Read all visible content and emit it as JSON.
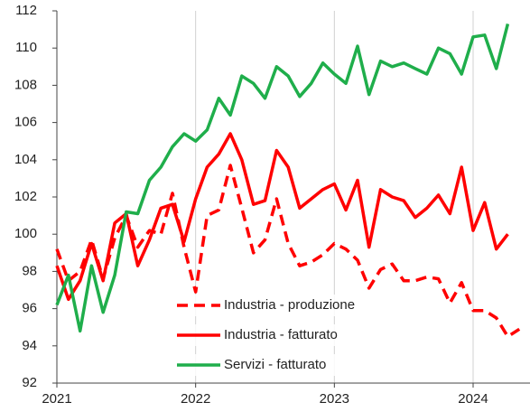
{
  "chart_data": {
    "type": "line",
    "x": [
      2021,
      2021.083,
      2021.167,
      2021.25,
      2021.333,
      2021.417,
      2021.5,
      2021.583,
      2021.667,
      2021.75,
      2021.833,
      2021.917,
      2022,
      2022.083,
      2022.167,
      2022.25,
      2022.333,
      2022.417,
      2022.5,
      2022.583,
      2022.667,
      2022.75,
      2022.833,
      2022.917,
      2023,
      2023.083,
      2023.167,
      2023.25,
      2023.333,
      2023.417,
      2023.5,
      2023.583,
      2023.667,
      2023.75,
      2023.833,
      2023.917,
      2024,
      2024.083,
      2024.167,
      2024.25,
      2024.333
    ],
    "series": [
      {
        "name": "Industria - produzione",
        "color": "#ff0000",
        "dashed": true,
        "values": [
          99.2,
          97.5,
          98.0,
          99.7,
          97.6,
          99.8,
          101.0,
          99.3,
          100.2,
          100.0,
          102.2,
          99.3,
          96.9,
          101.0,
          101.3,
          103.7,
          101.4,
          99.0,
          99.7,
          101.9,
          99.5,
          98.3,
          98.5,
          98.9,
          99.5,
          99.2,
          98.6,
          97.1,
          98.1,
          98.4,
          97.5,
          97.5,
          97.7,
          97.6,
          96.3,
          97.4,
          95.9,
          95.9,
          95.5,
          94.5,
          94.9
        ]
      },
      {
        "name": "Industria - fatturato",
        "color": "#ff0000",
        "dashed": false,
        "values": [
          98.3,
          96.5,
          97.5,
          99.5,
          97.5,
          100.6,
          101.1,
          98.3,
          99.7,
          101.4,
          101.6,
          99.6,
          101.9,
          103.6,
          104.3,
          105.4,
          104.0,
          101.6,
          101.8,
          104.5,
          103.6,
          101.4,
          101.9,
          102.4,
          102.7,
          101.3,
          102.9,
          99.3,
          102.4,
          102.0,
          101.8,
          100.9,
          101.4,
          102.1,
          101.1,
          103.6,
          100.2,
          101.7,
          99.2,
          100.0,
          null
        ]
      },
      {
        "name": "Servizi - fatturato",
        "color": "#1fae4b",
        "dashed": false,
        "values": [
          96.2,
          97.8,
          94.8,
          98.3,
          95.8,
          97.8,
          101.2,
          101.1,
          102.9,
          103.6,
          104.7,
          105.4,
          105.0,
          105.6,
          107.3,
          106.4,
          108.5,
          108.1,
          107.3,
          109.0,
          108.5,
          107.4,
          108.1,
          109.2,
          108.6,
          108.1,
          110.1,
          107.5,
          109.3,
          109.0,
          109.2,
          108.9,
          108.6,
          110.0,
          109.7,
          108.6,
          110.6,
          110.7,
          108.9,
          111.3,
          null
        ]
      }
    ],
    "xlim": [
      2021,
      2024.41
    ],
    "xticks": [
      2021,
      2022,
      2023,
      2024
    ],
    "ylim": [
      92,
      112
    ],
    "yticks": [
      92,
      94,
      96,
      98,
      100,
      102,
      104,
      106,
      108,
      110,
      112
    ],
    "grid_x": true,
    "legend": "lower center"
  }
}
